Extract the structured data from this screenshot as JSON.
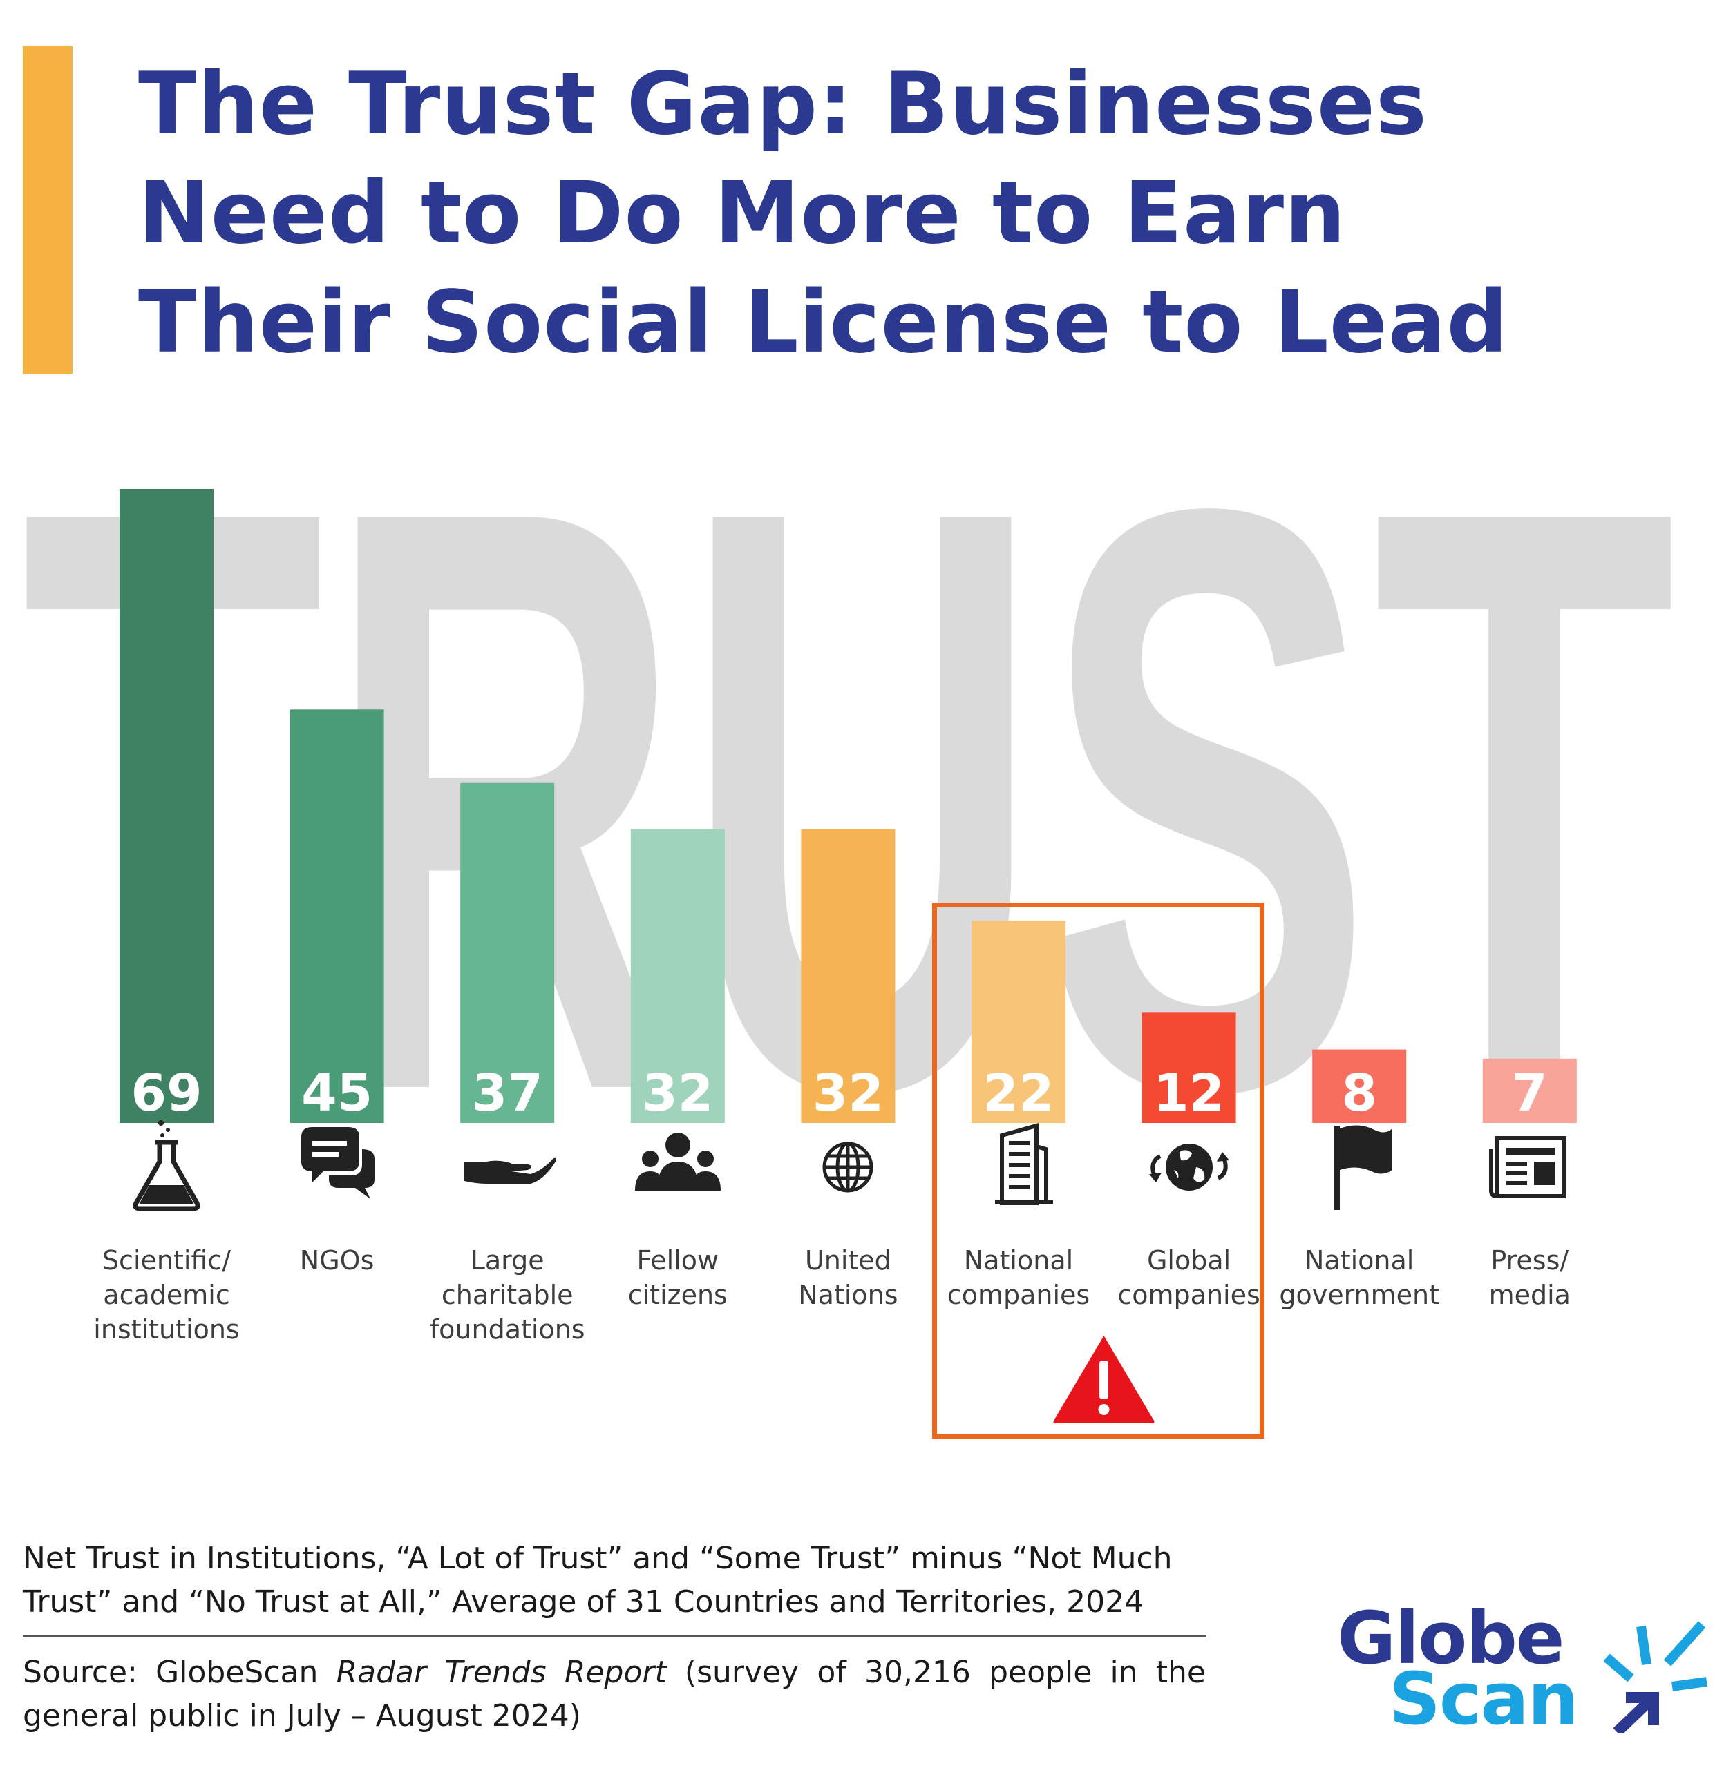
{
  "title": {
    "line1": "The Trust Gap: Businesses",
    "line2": "Need to Do More to Earn",
    "line3": "Their Social License to Lead"
  },
  "background_word": "TRUST",
  "chart_data": {
    "type": "bar",
    "categories": [
      "Scientific/\nacademic\ninstitutions",
      "NGOs",
      "Large\ncharitable\nfoundations",
      "Fellow\ncitizens",
      "United\nNations",
      "National\ncompanies",
      "Global\ncompanies",
      "National\ngovernment",
      "Press/\nmedia"
    ],
    "values": [
      69,
      45,
      37,
      32,
      32,
      22,
      12,
      8,
      7
    ],
    "value_labels": [
      "69",
      "45",
      "37",
      "32",
      "32",
      "22",
      "12",
      "8",
      "7"
    ],
    "bar_colors": [
      "#3e8263",
      "#4a9c77",
      "#66b791",
      "#a0d3bb",
      "#f5b354",
      "#f7c478",
      "#f54a32",
      "#f76e5e",
      "#f9a499"
    ],
    "icons": [
      "flask-icon",
      "chat-bubbles-icon",
      "open-hand-icon",
      "people-group-icon",
      "globe-grid-icon",
      "office-building-icon",
      "globe-arrows-icon",
      "flag-icon",
      "newspaper-icon"
    ],
    "highlighted_categories": [
      "National\ncompanies",
      "Global\ncompanies"
    ],
    "ylim": [
      0,
      69
    ],
    "grid": false,
    "legend": "none"
  },
  "colors": {
    "title": "#2b3990",
    "accent": "#f7b143",
    "highlight_box": "#ec671e",
    "warning": "#e8141c",
    "background_word": "#dadada",
    "logo_dark": "#2b3990",
    "logo_light": "#1aa3e0"
  },
  "subtitle": "Net Trust in Institutions, “A Lot of Trust” and “Some Trust” minus “Not Much Trust” and “No Trust at All,” Average of 31 Countries and Territories, 2024",
  "source": {
    "prefix": "Source: GlobeScan ",
    "report": "Radar Trends Report",
    "suffix": " (survey of 30,216 people in the general public in July – August 2024)"
  },
  "logo": {
    "line1": "Globe",
    "line2": "Scan"
  }
}
